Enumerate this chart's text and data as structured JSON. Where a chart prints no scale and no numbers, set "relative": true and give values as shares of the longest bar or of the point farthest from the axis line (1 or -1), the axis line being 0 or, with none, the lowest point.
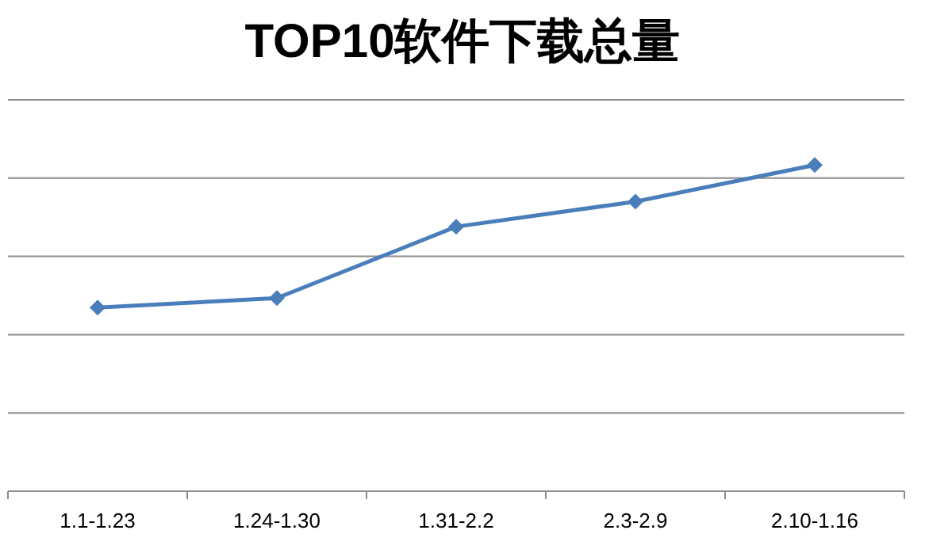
{
  "chart_data": {
    "type": "line",
    "title": "TOP10软件下载总量",
    "relative": true,
    "grid": "y",
    "marker": "diamond",
    "line_style": "solid",
    "categories": [
      "1.1-1.23",
      "1.24-1.30",
      "1.31-2.2",
      "2.3-2.9",
      "2.10-1.16"
    ],
    "series": [
      {
        "color": "#4a7ebb",
        "values": [
          0.563,
          0.592,
          0.811,
          0.888,
          1
        ]
      }
    ]
  }
}
